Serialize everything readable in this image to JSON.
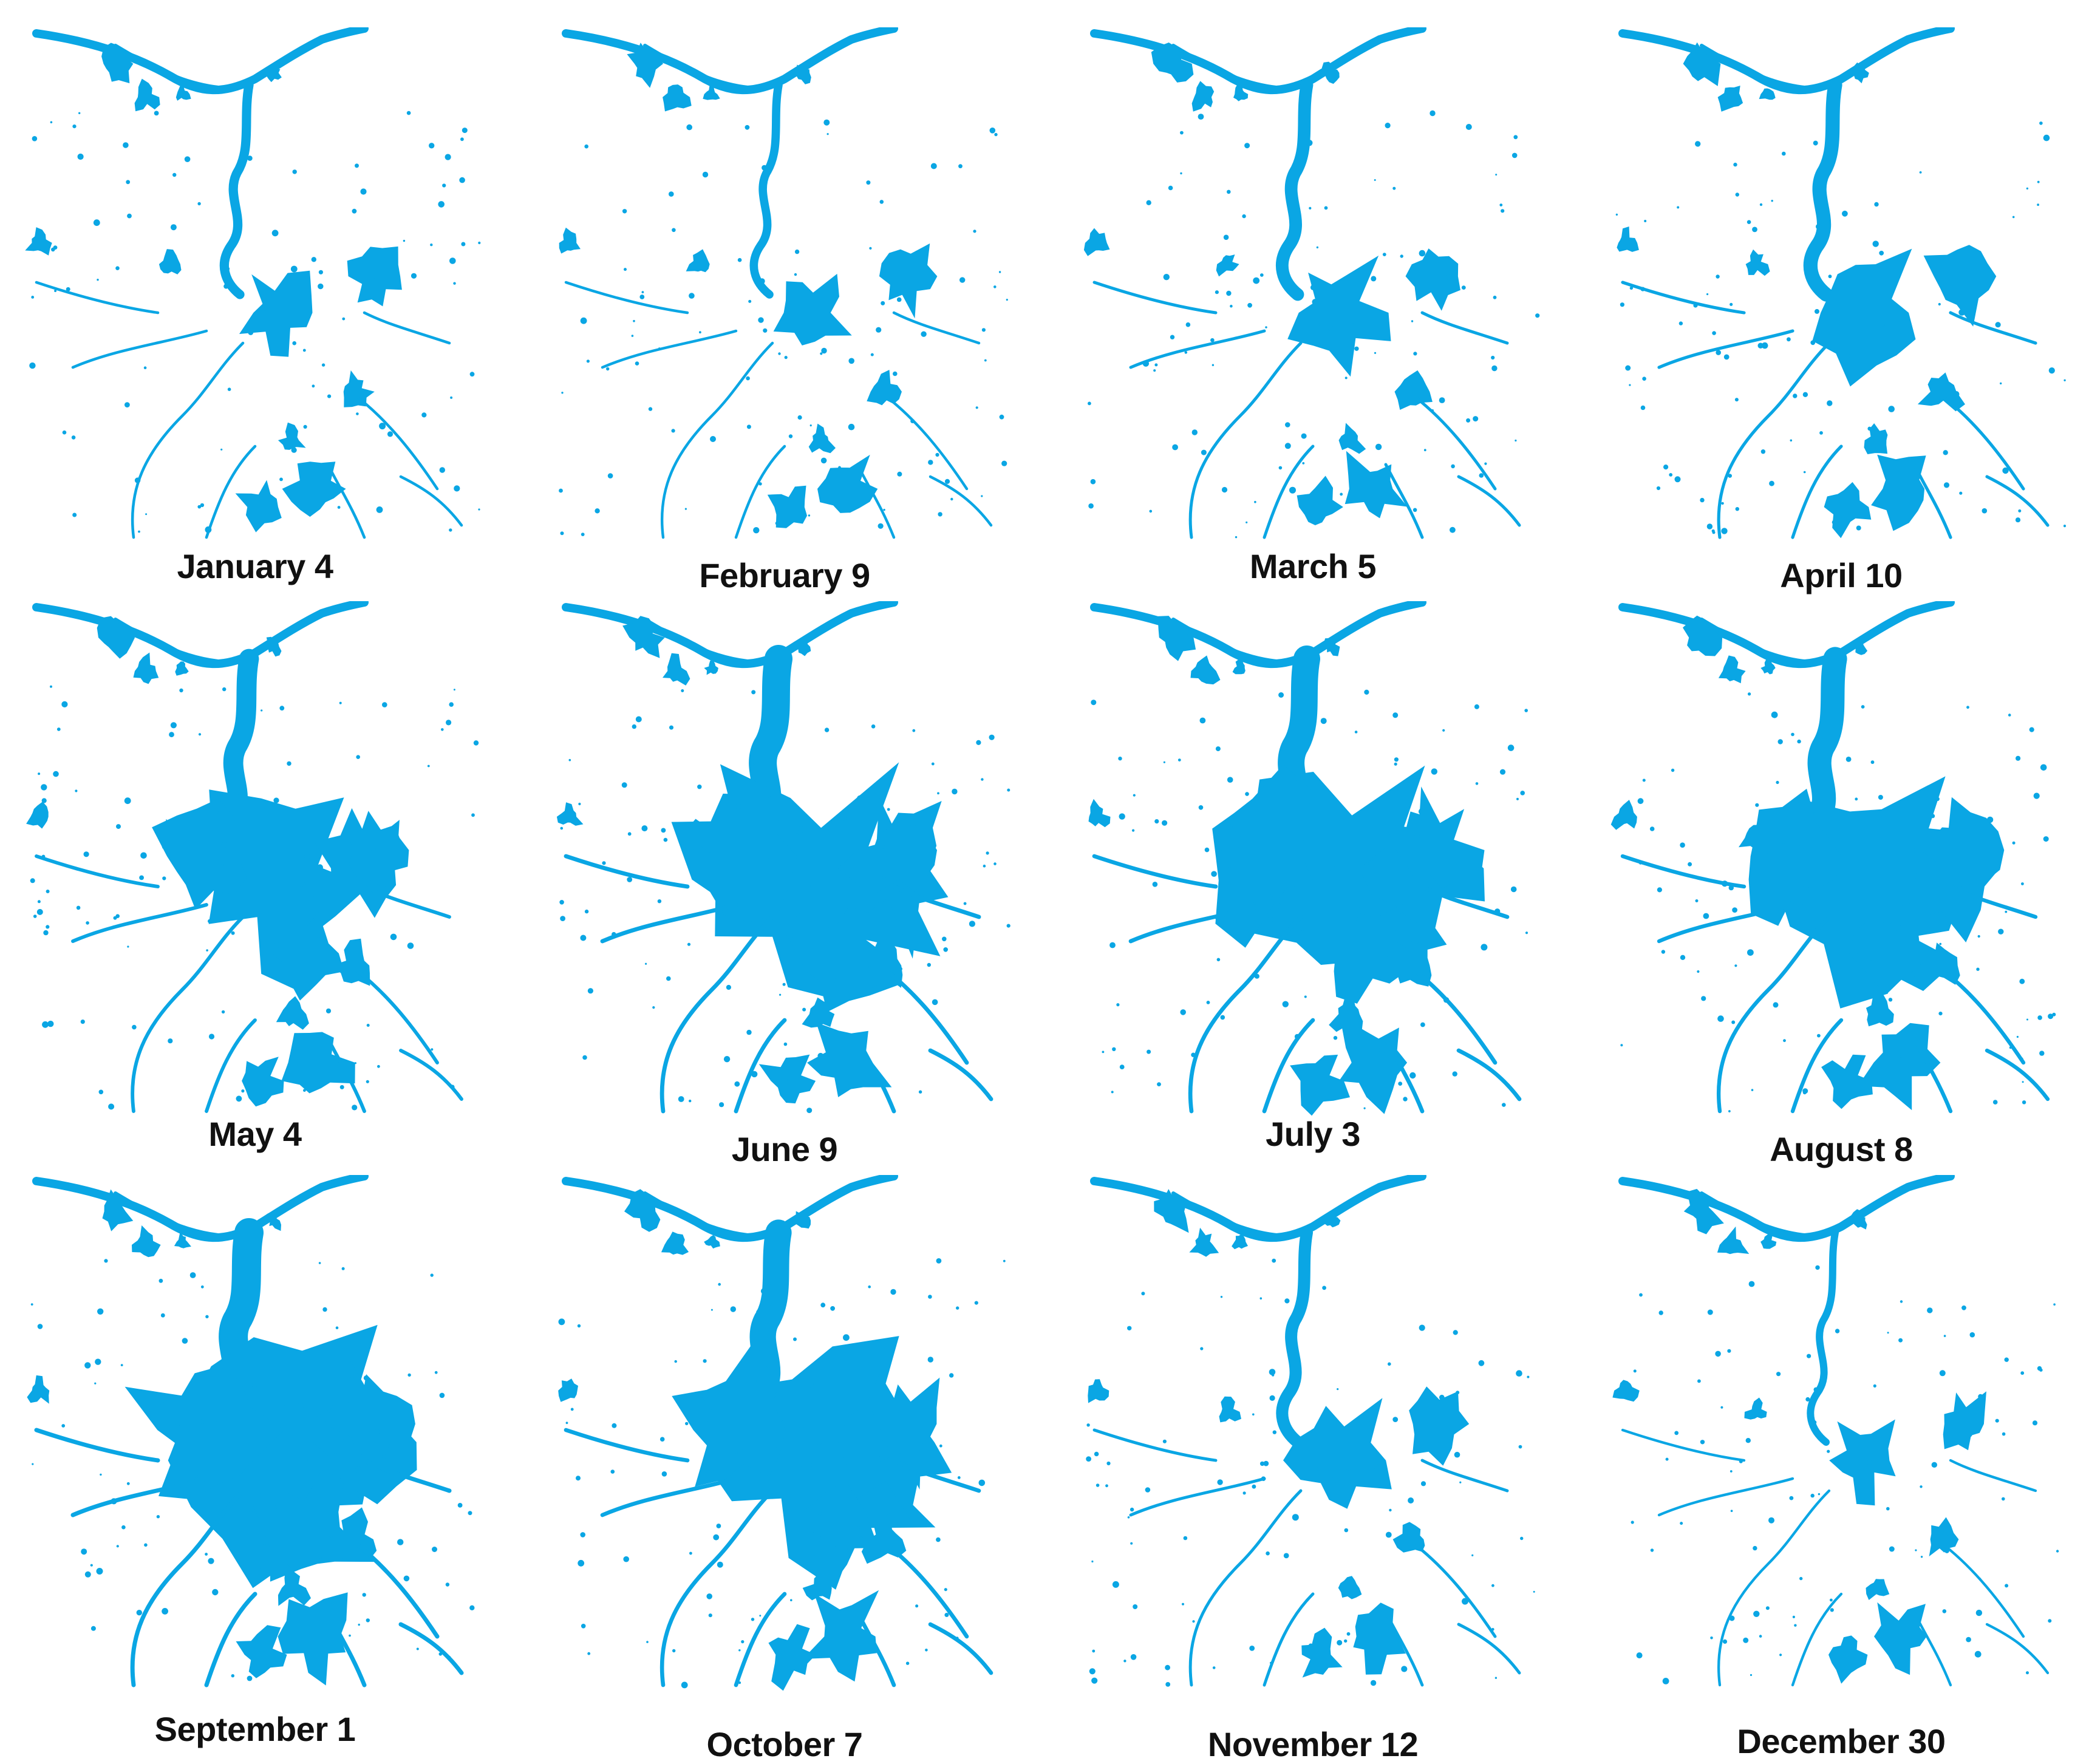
{
  "colors": {
    "water": "#0aa6e4",
    "background": "#ffffff",
    "caption": "#111111"
  },
  "panels": [
    {
      "label": "January 4",
      "extent": 0.18
    },
    {
      "label": "February 9",
      "extent": 0.14
    },
    {
      "label": "March 5",
      "extent": 0.32
    },
    {
      "label": "April 10",
      "extent": 0.38
    },
    {
      "label": "May 4",
      "extent": 0.62
    },
    {
      "label": "June 9",
      "extent": 0.95
    },
    {
      "label": "July 3",
      "extent": 0.9
    },
    {
      "label": "August 8",
      "extent": 0.78
    },
    {
      "label": "September 1",
      "extent": 1.0
    },
    {
      "label": "October 7",
      "extent": 0.88
    },
    {
      "label": "November 12",
      "extent": 0.3
    },
    {
      "label": "December 30",
      "extent": 0.1
    }
  ]
}
